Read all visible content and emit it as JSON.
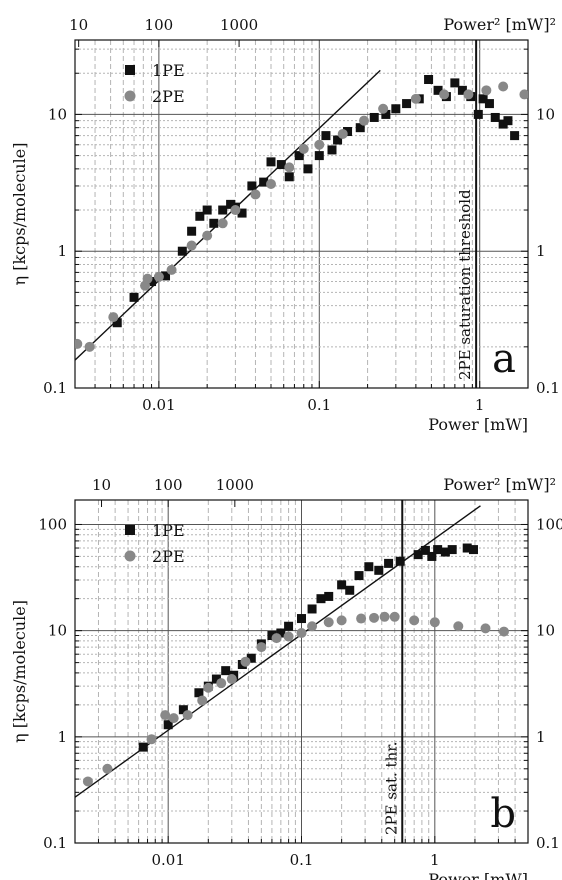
{
  "chart_data": [
    {
      "type": "scatter",
      "panel_label": "a",
      "xscale": "log",
      "yscale": "log",
      "xlim": [
        0.003,
        2.0
      ],
      "ylim": [
        0.1,
        35
      ],
      "xlabel": "Power [mW]",
      "ylabel": "η [kcps/molecule]",
      "top_axis_label": "Power² [mW]²",
      "x_ticks": [
        {
          "v": 0.01,
          "label": "0.01"
        },
        {
          "v": 0.1,
          "label": "0.1"
        },
        {
          "v": 1,
          "label": "1"
        }
      ],
      "y_ticks": [
        {
          "v": 0.1,
          "label": "0.1"
        },
        {
          "v": 1,
          "label": "1"
        },
        {
          "v": 10,
          "label": "10"
        }
      ],
      "top_ticks": [
        {
          "v": 0.003162,
          "label": "10"
        },
        {
          "v": 0.01,
          "label": "100"
        },
        {
          "v": 0.03162,
          "label": "1000"
        }
      ],
      "annotation": {
        "text": "2PE saturation threshold",
        "x": 0.95
      },
      "fit_line": [
        [
          0.003,
          0.16
        ],
        [
          0.24,
          21
        ]
      ],
      "grid": true,
      "legend": "top-left",
      "series": [
        {
          "name": "1PE",
          "marker": "square",
          "color": "#111111",
          "points": [
            [
              0.0055,
              0.3
            ],
            [
              0.007,
              0.46
            ],
            [
              0.009,
              0.6
            ],
            [
              0.011,
              0.66
            ],
            [
              0.014,
              1.0
            ],
            [
              0.016,
              1.4
            ],
            [
              0.018,
              1.8
            ],
            [
              0.02,
              2.0
            ],
            [
              0.022,
              1.6
            ],
            [
              0.025,
              2.0
            ],
            [
              0.028,
              2.2
            ],
            [
              0.03,
              2.1
            ],
            [
              0.033,
              1.9
            ],
            [
              0.038,
              3.0
            ],
            [
              0.045,
              3.2
            ],
            [
              0.05,
              4.5
            ],
            [
              0.058,
              4.3
            ],
            [
              0.065,
              3.5
            ],
            [
              0.075,
              5.0
            ],
            [
              0.085,
              4.0
            ],
            [
              0.1,
              5.0
            ],
            [
              0.11,
              7.0
            ],
            [
              0.12,
              5.5
            ],
            [
              0.13,
              6.5
            ],
            [
              0.15,
              7.5
            ],
            [
              0.18,
              8.0
            ],
            [
              0.22,
              9.5
            ],
            [
              0.26,
              10.0
            ],
            [
              0.3,
              11.0
            ],
            [
              0.35,
              12.0
            ],
            [
              0.42,
              13.0
            ],
            [
              0.48,
              18.0
            ],
            [
              0.55,
              15.0
            ],
            [
              0.62,
              13.5
            ],
            [
              0.7,
              17.0
            ],
            [
              0.78,
              15.0
            ],
            [
              0.88,
              13.5
            ],
            [
              0.98,
              10.0
            ],
            [
              1.05,
              13.0
            ],
            [
              1.15,
              12.0
            ],
            [
              1.25,
              9.5
            ],
            [
              1.4,
              8.5
            ],
            [
              1.5,
              9.0
            ],
            [
              1.65,
              7.0
            ]
          ]
        },
        {
          "name": "2PE",
          "marker": "circle",
          "color": "#888888",
          "points": [
            [
              0.0031,
              0.21
            ],
            [
              0.0037,
              0.2
            ],
            [
              0.0052,
              0.33
            ],
            [
              0.0082,
              0.56
            ],
            [
              0.0085,
              0.63
            ],
            [
              0.01,
              0.65
            ],
            [
              0.012,
              0.73
            ],
            [
              0.016,
              1.1
            ],
            [
              0.02,
              1.3
            ],
            [
              0.025,
              1.6
            ],
            [
              0.03,
              2.0
            ],
            [
              0.04,
              2.6
            ],
            [
              0.05,
              3.1
            ],
            [
              0.065,
              4.1
            ],
            [
              0.08,
              5.6
            ],
            [
              0.1,
              6.0
            ],
            [
              0.14,
              7.2
            ],
            [
              0.19,
              9.0
            ],
            [
              0.25,
              11.0
            ],
            [
              0.4,
              13.0
            ],
            [
              0.6,
              14.0
            ],
            [
              0.85,
              14.0
            ],
            [
              1.1,
              15.0
            ],
            [
              1.4,
              16.0
            ],
            [
              1.9,
              14.0
            ]
          ]
        }
      ]
    },
    {
      "type": "scatter",
      "panel_label": "b",
      "xscale": "log",
      "yscale": "log",
      "xlim": [
        0.002,
        5.0
      ],
      "ylim": [
        0.1,
        170
      ],
      "xlabel": "Power [mW]",
      "ylabel": "η [kcps/molecule]",
      "top_axis_label": "Power² [mW]²",
      "x_ticks": [
        {
          "v": 0.01,
          "label": "0.01"
        },
        {
          "v": 0.1,
          "label": "0.1"
        },
        {
          "v": 1,
          "label": "1"
        }
      ],
      "y_ticks": [
        {
          "v": 0.1,
          "label": "0.1"
        },
        {
          "v": 1,
          "label": "1"
        },
        {
          "v": 10,
          "label": "10"
        },
        {
          "v": 100,
          "label": "100"
        }
      ],
      "top_ticks": [
        {
          "v": 0.003162,
          "label": "10"
        },
        {
          "v": 0.01,
          "label": "100"
        },
        {
          "v": 0.03162,
          "label": "1000"
        }
      ],
      "annotation": {
        "text": "2PE sat. thr.",
        "x": 0.57
      },
      "fit_line": [
        [
          0.002,
          0.27
        ],
        [
          2.2,
          150
        ]
      ],
      "grid": true,
      "legend": "top-left",
      "series": [
        {
          "name": "1PE",
          "marker": "square",
          "color": "#111111",
          "points": [
            [
              0.0065,
              0.8
            ],
            [
              0.01,
              1.3
            ],
            [
              0.013,
              1.8
            ],
            [
              0.017,
              2.6
            ],
            [
              0.02,
              3.0
            ],
            [
              0.023,
              3.5
            ],
            [
              0.027,
              4.2
            ],
            [
              0.031,
              3.8
            ],
            [
              0.036,
              4.8
            ],
            [
              0.042,
              5.5
            ],
            [
              0.05,
              7.5
            ],
            [
              0.06,
              9.0
            ],
            [
              0.07,
              9.5
            ],
            [
              0.08,
              11.0
            ],
            [
              0.1,
              13.0
            ],
            [
              0.12,
              16.0
            ],
            [
              0.14,
              20.0
            ],
            [
              0.16,
              21.0
            ],
            [
              0.2,
              27.0
            ],
            [
              0.23,
              24.0
            ],
            [
              0.27,
              33.0
            ],
            [
              0.32,
              40.0
            ],
            [
              0.38,
              37.0
            ],
            [
              0.45,
              43.0
            ],
            [
              0.55,
              45.0
            ],
            [
              0.75,
              52.0
            ],
            [
              0.85,
              57.0
            ],
            [
              0.95,
              50.0
            ],
            [
              1.05,
              58.0
            ],
            [
              1.2,
              55.0
            ],
            [
              1.35,
              58.0
            ],
            [
              1.75,
              60.0
            ],
            [
              1.95,
              58.0
            ]
          ]
        },
        {
          "name": "2PE",
          "marker": "circle",
          "color": "#888888",
          "points": [
            [
              0.0025,
              0.38
            ],
            [
              0.0035,
              0.5
            ],
            [
              0.0075,
              0.95
            ],
            [
              0.0095,
              1.6
            ],
            [
              0.011,
              1.5
            ],
            [
              0.014,
              1.6
            ],
            [
              0.018,
              2.2
            ],
            [
              0.02,
              2.9
            ],
            [
              0.025,
              3.2
            ],
            [
              0.03,
              3.5
            ],
            [
              0.038,
              5.1
            ],
            [
              0.05,
              7.0
            ],
            [
              0.065,
              8.5
            ],
            [
              0.08,
              8.8
            ],
            [
              0.1,
              9.5
            ],
            [
              0.12,
              11.0
            ],
            [
              0.16,
              12.0
            ],
            [
              0.2,
              12.5
            ],
            [
              0.28,
              13.0
            ],
            [
              0.35,
              13.2
            ],
            [
              0.42,
              13.5
            ],
            [
              0.5,
              13.5
            ],
            [
              0.7,
              12.5
            ],
            [
              1.0,
              12.0
            ],
            [
              1.5,
              11.0
            ],
            [
              2.4,
              10.5
            ],
            [
              3.3,
              9.8
            ]
          ]
        }
      ]
    }
  ]
}
